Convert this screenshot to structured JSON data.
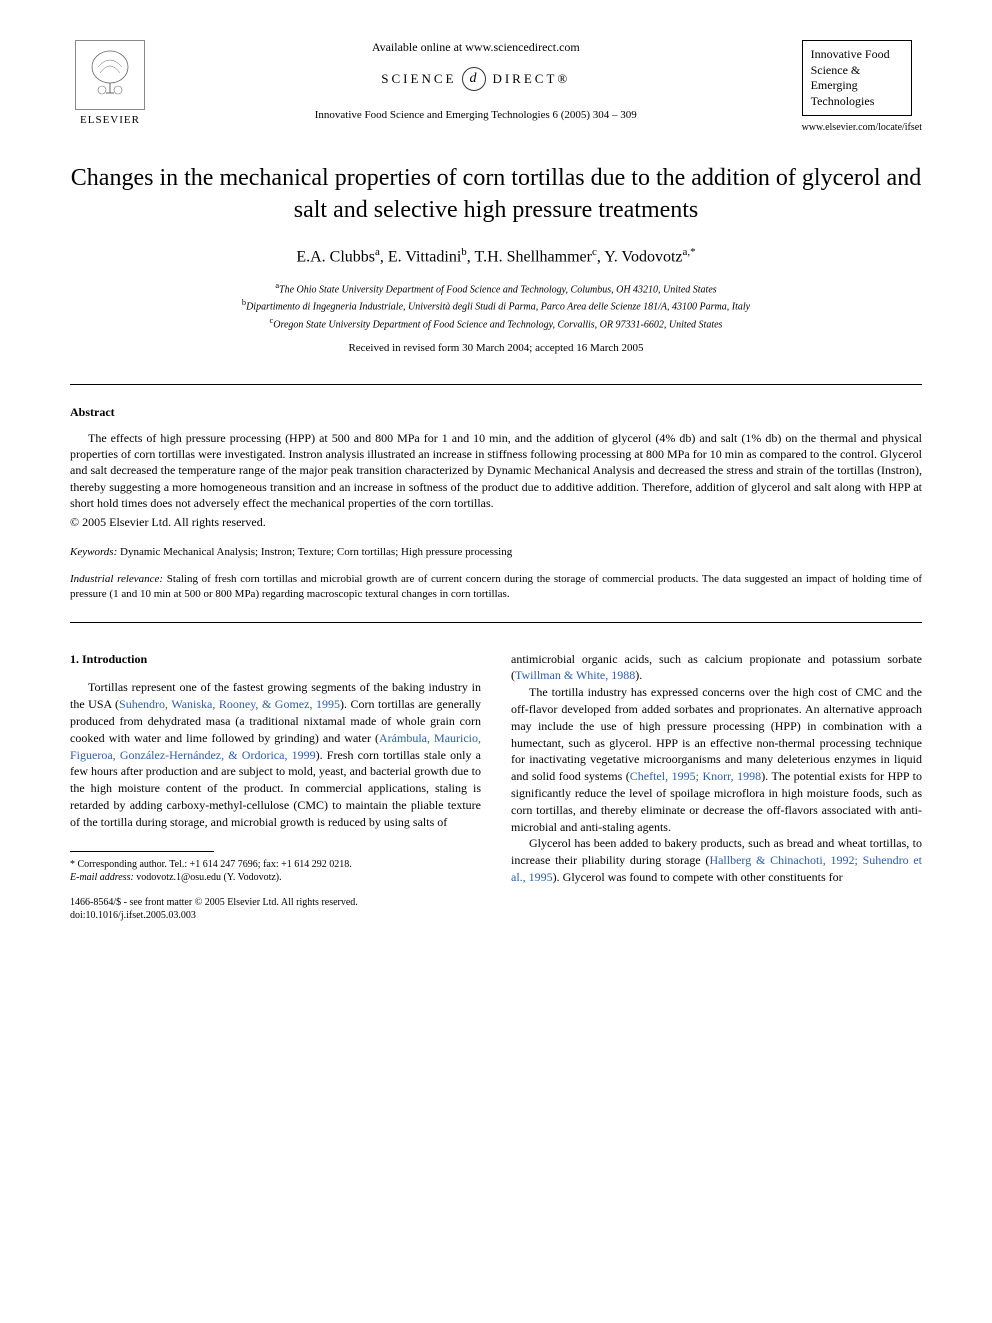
{
  "header": {
    "elsevier_label": "ELSEVIER",
    "available_online": "Available online at www.sciencedirect.com",
    "science_direct_left": "SCIENCE",
    "science_direct_right": "DIRECT®",
    "sd_glyph": "d",
    "citation": "Innovative Food Science and Emerging Technologies 6 (2005) 304 – 309",
    "journal_name": "Innovative Food Science & Emerging Technologies",
    "journal_url": "www.elsevier.com/locate/ifset"
  },
  "title": "Changes in the mechanical properties of corn tortillas due to the addition of glycerol and salt and selective high pressure treatments",
  "authors_html": "E.A. Clubbs<sup>a</sup>, E. Vittadini<sup>b</sup>, T.H. Shellhammer<sup>c</sup>, Y. Vodovotz<sup>a,*</sup>",
  "affiliations": [
    {
      "sup": "a",
      "text": "The Ohio State University Department of Food Science and Technology, Columbus, OH 43210, United States"
    },
    {
      "sup": "b",
      "text": "Dipartimento di Ingegneria Industriale, Università degli Studi di Parma, Parco Area delle Scienze 181/A, 43100 Parma, Italy"
    },
    {
      "sup": "c",
      "text": "Oregon State University Department of Food Science and Technology, Corvallis, OR 97331-6602, United States"
    }
  ],
  "dates": "Received in revised form 30 March 2004; accepted 16 March 2005",
  "abstract": {
    "heading": "Abstract",
    "text": "The effects of high pressure processing (HPP) at 500 and 800 MPa for 1 and 10 min, and the addition of glycerol (4% db) and salt (1% db) on the thermal and physical properties of corn tortillas were investigated. Instron analysis illustrated an increase in stiffness following processing at 800 MPa for 10 min as compared to the control. Glycerol and salt decreased the temperature range of the major peak transition characterized by Dynamic Mechanical Analysis and decreased the stress and strain of the tortillas (Instron), thereby suggesting a more homogeneous transition and an increase in softness of the product due to additive addition. Therefore, addition of glycerol and salt along with HPP at short hold times does not adversely effect the mechanical properties of the corn tortillas.",
    "copyright": "© 2005 Elsevier Ltd. All rights reserved."
  },
  "keywords": {
    "label": "Keywords:",
    "text": "Dynamic Mechanical Analysis; Instron; Texture; Corn tortillas; High pressure processing"
  },
  "relevance": {
    "label": "Industrial relevance:",
    "text": "Staling of fresh corn tortillas and microbial growth are of current concern during the storage of commercial products. The data suggested an impact of holding time of pressure (1 and 10 min at 500 or 800 MPa) regarding macroscopic textural changes in corn tortillas."
  },
  "body": {
    "section_heading": "1. Introduction",
    "left_col": [
      {
        "type": "para",
        "runs": [
          {
            "t": "Tortillas represent one of the fastest growing segments of the baking industry in the USA ("
          },
          {
            "t": "Suhendro, Waniska, Rooney, & Gomez, 1995",
            "ref": true
          },
          {
            "t": "). Corn tortillas are generally produced from dehydrated masa (a traditional nixtamal made of whole grain corn cooked with water and lime followed by grinding) and water ("
          },
          {
            "t": "Arámbula, Mauricio, Figueroa, González-Hernández, & Ordorica, 1999",
            "ref": true
          },
          {
            "t": "). Fresh corn tortillas stale only a few hours after production and are subject to mold, yeast, and bacterial growth due to the high moisture content of the product. In commercial applications, staling is retarded by adding carboxy-methyl-cellulose (CMC) to maintain the pliable texture of the tortilla during storage, and microbial growth is reduced by using salts of"
          }
        ]
      }
    ],
    "right_col": [
      {
        "type": "plain",
        "runs": [
          {
            "t": "antimicrobial organic acids, such as calcium propionate and potassium sorbate ("
          },
          {
            "t": "Twillman & White, 1988",
            "ref": true
          },
          {
            "t": ")."
          }
        ]
      },
      {
        "type": "para",
        "runs": [
          {
            "t": "The tortilla industry has expressed concerns over the high cost of CMC and the off-flavor developed from added sorbates and proprionates. An alternative approach may include the use of high pressure processing (HPP) in combination with a humectant, such as glycerol. HPP is an effective non-thermal processing technique for inactivating vegetative microorganisms and many deleterious enzymes in liquid and solid food systems ("
          },
          {
            "t": "Cheftel, 1995; Knorr, 1998",
            "ref": true
          },
          {
            "t": "). The potential exists for HPP to significantly reduce the level of spoilage microflora in high moisture foods, such as corn tortillas, and thereby eliminate or decrease the off-flavors associated with anti-microbial and anti-staling agents."
          }
        ]
      },
      {
        "type": "para",
        "runs": [
          {
            "t": "Glycerol has been added to bakery products, such as bread and wheat tortillas, to increase their pliability during storage ("
          },
          {
            "t": "Hallberg & Chinachoti, 1992; Suhendro et al., 1995",
            "ref": true
          },
          {
            "t": "). Glycerol was found to compete with other constituents for"
          }
        ]
      }
    ]
  },
  "footnote": {
    "corr": "* Corresponding author. Tel.: +1 614 247 7696; fax: +1 614 292 0218.",
    "email_label": "E-mail address:",
    "email": "vodovotz.1@osu.edu (Y. Vodovotz)."
  },
  "footer": {
    "issn": "1466-8564/$ - see front matter © 2005 Elsevier Ltd. All rights reserved.",
    "doi": "doi:10.1016/j.ifset.2005.03.003"
  },
  "colors": {
    "ref_link": "#2a5db0",
    "text": "#000000",
    "bg": "#ffffff"
  }
}
